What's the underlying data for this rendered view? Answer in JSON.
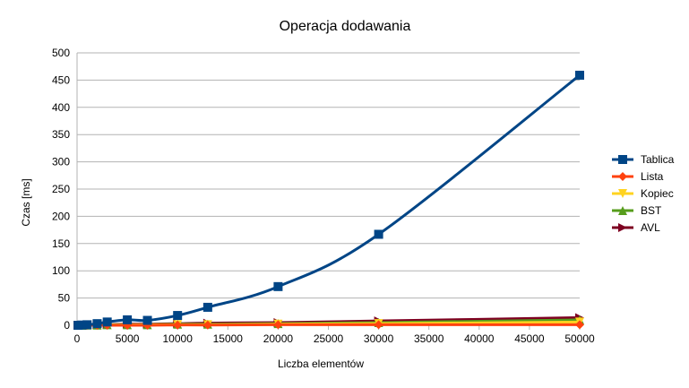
{
  "chart_data": {
    "type": "line",
    "title": "Operacja dodawania",
    "xlabel": "Liczba elementów",
    "ylabel": "Czas [ms]",
    "xlim": [
      0,
      50000
    ],
    "ylim": [
      0,
      500
    ],
    "xticks": [
      0,
      5000,
      10000,
      15000,
      20000,
      25000,
      30000,
      35000,
      40000,
      45000,
      50000
    ],
    "yticks": [
      0,
      50,
      100,
      150,
      200,
      250,
      300,
      350,
      400,
      450,
      500
    ],
    "grid": "horizontal",
    "legend_position": "right",
    "x": [
      100,
      500,
      1000,
      2000,
      3000,
      5000,
      7000,
      10000,
      13000,
      20000,
      30000,
      50000
    ],
    "series": [
      {
        "name": "Tablica",
        "color": "#004586",
        "marker": "square",
        "values": [
          0,
          0.5,
          1,
          3,
          6,
          10,
          9,
          18,
          33,
          71,
          167,
          459
        ]
      },
      {
        "name": "Lista",
        "color": "#ff420e",
        "marker": "diamond",
        "values": [
          0,
          0,
          0,
          0,
          0,
          0,
          0,
          0.5,
          0.5,
          1,
          1,
          1
        ]
      },
      {
        "name": "Kopiec",
        "color": "#ffd320",
        "marker": "triangle-down",
        "values": [
          0,
          0,
          0,
          0,
          0.5,
          0.5,
          1,
          1,
          1,
          2,
          3,
          6
        ]
      },
      {
        "name": "BST",
        "color": "#579d1c",
        "marker": "triangle-up",
        "values": [
          0,
          0,
          0.5,
          0.5,
          1,
          1,
          1,
          2,
          2,
          3,
          5,
          10
        ]
      },
      {
        "name": "AVL",
        "color": "#7e0021",
        "marker": "triangle-right",
        "values": [
          0,
          0.5,
          0.5,
          1,
          1,
          2,
          2,
          3,
          4,
          5,
          8,
          14
        ]
      }
    ]
  }
}
